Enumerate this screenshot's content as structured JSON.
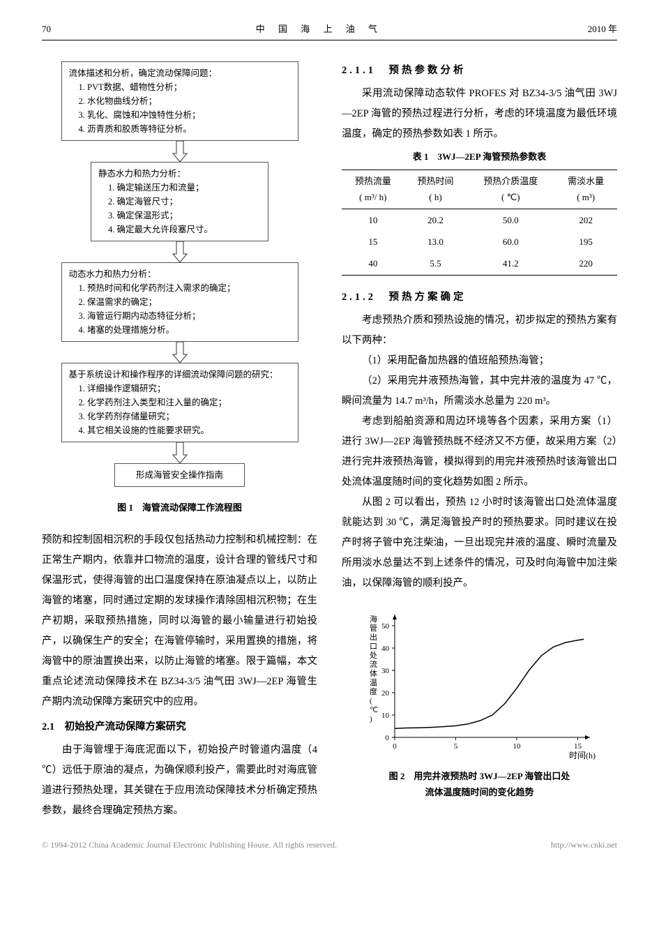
{
  "page_number": "70",
  "journal_title": "中 国 海 上 油 气",
  "year_label": "2010 年",
  "flowchart": {
    "boxes": [
      {
        "title": "流体描述和分析，确定流动保障问题：",
        "items": [
          "1. PVT数据、蜡物性分析；",
          "2. 水化物曲线分析；",
          "3. 乳化、腐蚀和冲蚀特性分析；",
          "4. 沥青质和胶质等特征分析。"
        ]
      },
      {
        "title": "静态水力和热力分析：",
        "items": [
          "1. 确定输送压力和流量；",
          "2. 确定海管尺寸；",
          "3. 确定保温形式；",
          "4. 确定最大允许段塞尺寸。"
        ]
      },
      {
        "title": "动态水力和热力分析：",
        "items": [
          "1. 预热时间和化学药剂注入需求的确定；",
          "2. 保温需求的确定；",
          "3. 海管运行期内动态特征分析；",
          "4. 堵塞的处理措施分析。"
        ]
      },
      {
        "title": "基于系统设计和操作程序的详细流动保障问题的研究：",
        "items": [
          "1. 详细操作逻辑研究；",
          "2. 化学药剂注入类型和注入量的确定；",
          "3. 化学药剂存储量研究；",
          "4. 其它相关设施的性能要求研究。"
        ]
      },
      {
        "title": "形成海管安全操作指南",
        "items": []
      }
    ]
  },
  "fig1_caption": "图 1　海管流动保障工作流程图",
  "left_body": {
    "p1": "预防和控制固相沉积的手段仅包括热动力控制和机械控制：在正常生产期内，依靠井口物流的温度，设计合理的管线尺寸和保温形式，使得海管的出口温度保持在原油凝点以上，以防止海管的堵塞，同时通过定期的发球操作清除固相沉积物；在生产初期，采取预热措施，同时以海管的最小输量进行初始投产，以确保生产的安全；在海管停输时，采用置换的措施，将海管中的原油置换出来，以防止海管的堵塞。限于篇幅，本文重点论述流动保障技术在 BZ34-3/5 油气田 3WJ—2EP 海管生产期内流动保障方案研究中的应用。"
  },
  "sec2_1_title": "2.1　初始投产流动保障方案研究",
  "sec2_1_body": "由于海管埋于海底泥面以下，初始投产时管道内温度（4 ℃）远低于原油的凝点，为确保顺利投产，需要此时对海底管道进行预热处理，其关键在于应用流动保障技术分析确定预热参数，最终合理确定预热方案。",
  "sec2_1_1_title": "2.1.1　预热参数分析",
  "sec2_1_1_body": "采用流动保障动态软件 PROFES 对 BZ34-3/5 油气田 3WJ—2EP 海管的预热过程进行分析，考虑的环境温度为最低环境温度，确定的预热参数如表 1 所示。",
  "table1": {
    "caption": "表 1　3WJ—2EP 海管预热参数表",
    "columns": [
      {
        "h1": "预热流量",
        "h2": "( m³/ h)"
      },
      {
        "h1": "预热时间",
        "h2": "( h)"
      },
      {
        "h1": "预热介质温度",
        "h2": "( ℃)"
      },
      {
        "h1": "需淡水量",
        "h2": "( m³)"
      }
    ],
    "rows": [
      [
        "10",
        "20.2",
        "50.0",
        "202"
      ],
      [
        "15",
        "13.0",
        "60.0",
        "195"
      ],
      [
        "40",
        "5.5",
        "41.2",
        "220"
      ]
    ]
  },
  "sec2_1_2_title": "2.1.2　预热方案确定",
  "sec2_1_2_p1": "考虑预热介质和预热设施的情况，初步拟定的预热方案有以下两种：",
  "sec2_1_2_i1": "（1）采用配备加热器的值班船预热海管；",
  "sec2_1_2_i2": "（2）采用完井液预热海管，其中完井液的温度为 47 ℃，瞬间流量为 14.7 m³/h，所需淡水总量为 220 m³。",
  "sec2_1_2_p2": "考虑到船舶资源和周边环境等各个因素，采用方案（1）进行 3WJ—2EP 海管预热既不经济又不方便，故采用方案（2）进行完井液预热海管，模拟得到的用完井液预热时该海管出口处流体温度随时间的变化趋势如图 2 所示。",
  "sec2_1_2_p3": "从图 2 可以看出，预热 12 小时时该海管出口处流体温度就能达到 30 ℃，满足海管投产时的预热要求。同时建议在投产时将子管中充注柴油，一旦出现完井液的温度、瞬时流量及所用淡水总量达不到上述条件的情况，可及时向海管中加注柴油，以保障海管的顺利投产。",
  "fig2": {
    "caption_l1": "图 2　用完井液预热时 3WJ—2EP 海管出口处",
    "caption_l2": "流体温度随时间的变化趋势",
    "ylabel": "海管出口处流体温度(℃)",
    "xlabel": "时间(h)",
    "xlim": [
      0,
      16
    ],
    "ylim": [
      0,
      55
    ],
    "xticks": [
      0,
      5,
      10,
      15
    ],
    "yticks": [
      0,
      10,
      20,
      30,
      40,
      50
    ],
    "line_color": "#000000",
    "line_width": 1.5,
    "background_color": "#ffffff",
    "axis_color": "#000000",
    "tick_fontsize": 11,
    "label_fontsize": 12,
    "data_points": [
      [
        0,
        4
      ],
      [
        1,
        4.2
      ],
      [
        2,
        4.3
      ],
      [
        3,
        4.5
      ],
      [
        4,
        4.8
      ],
      [
        5,
        5.2
      ],
      [
        6,
        6.0
      ],
      [
        7,
        7.5
      ],
      [
        8,
        10.0
      ],
      [
        9,
        15.0
      ],
      [
        10,
        22.0
      ],
      [
        11,
        30.0
      ],
      [
        12,
        36.5
      ],
      [
        13,
        40.5
      ],
      [
        14,
        42.5
      ],
      [
        15,
        43.5
      ],
      [
        15.5,
        44.0
      ]
    ]
  },
  "footer": {
    "left": "© 1994-2012 China Academic Journal Electronic Publishing House. All rights reserved.",
    "right": "http://www.cnki.net"
  }
}
